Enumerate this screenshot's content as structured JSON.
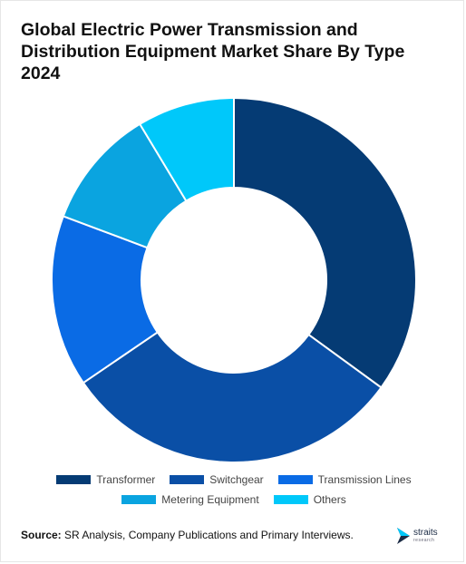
{
  "title": "Global Electric Power Transmission and Distribution Equipment Market Share By Type 2024",
  "chart_data": {
    "type": "donut",
    "title": "Global Electric Power Transmission and Distribution Equipment Market Share By Type 2024",
    "categories": [
      "Transformer",
      "Switchgear",
      "Transmission Lines",
      "Metering Equipment",
      "Others"
    ],
    "values": [
      34.5,
      30.0,
      15.0,
      10.5,
      8.5
    ],
    "colors": [
      "#053B74",
      "#0A4FA6",
      "#0A6BE5",
      "#0AA4E0",
      "#00C8FA"
    ],
    "legend_position": "bottom"
  },
  "source": {
    "label": "Source:",
    "text": " SR Analysis, Company Publications and Primary Interviews."
  },
  "logo": {
    "word": "straits",
    "sub": "research"
  }
}
